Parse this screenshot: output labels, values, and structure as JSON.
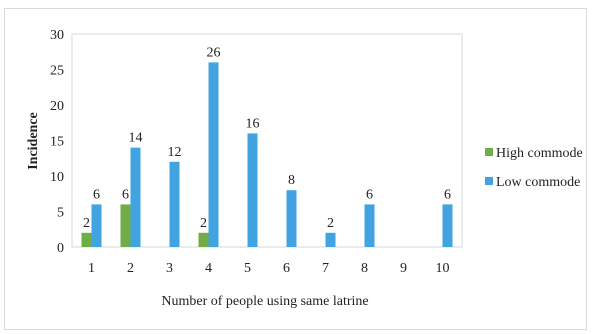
{
  "chart_data": {
    "type": "bar",
    "categories": [
      "1",
      "2",
      "3",
      "4",
      "5",
      "6",
      "7",
      "8",
      "9",
      "10"
    ],
    "series": [
      {
        "name": "High commode",
        "color": "#70ad47",
        "values": [
          2,
          6,
          0,
          2,
          0,
          0,
          0,
          0,
          0,
          0
        ]
      },
      {
        "name": "Low commode",
        "color": "#41a3df",
        "values": [
          6,
          14,
          12,
          26,
          16,
          8,
          2,
          6,
          0,
          6
        ]
      }
    ],
    "data_labels": {
      "High commode": [
        "2",
        "6",
        "",
        "2",
        "",
        "",
        "",
        "",
        "",
        ""
      ],
      "Low commode": [
        "6",
        "14",
        "12",
        "26",
        "16",
        "8",
        "2",
        "6",
        "",
        "6"
      ]
    },
    "xlabel": "Number of people using same latrine",
    "ylabel": "Incidence",
    "ylim": [
      0,
      30
    ],
    "yticks": [
      0,
      5,
      10,
      15,
      20,
      25,
      30
    ],
    "grid": false,
    "legend": "right"
  }
}
